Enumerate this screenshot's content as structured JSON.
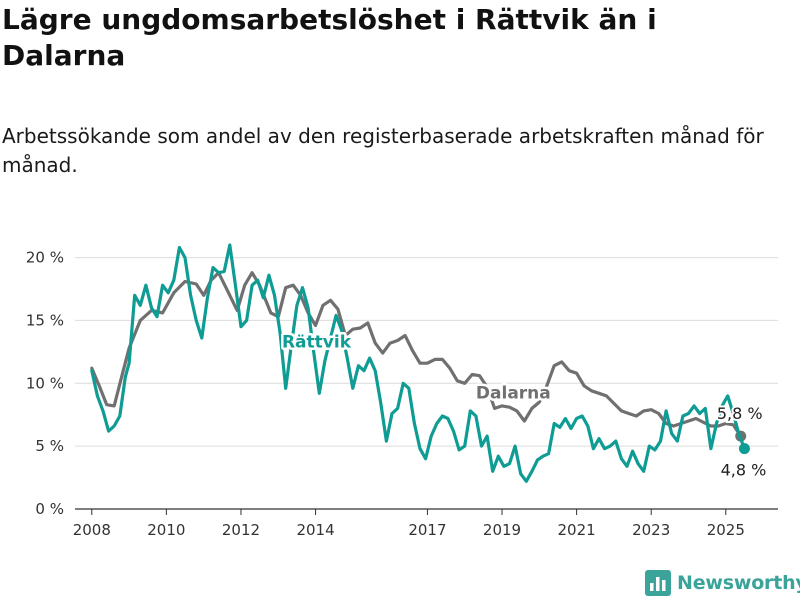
{
  "title": "Lägre ungdomsarbetslöshet i Rättvik än i Dalarna",
  "subtitle": "Arbetssökande som andel av den registerbaserade arbetskraften månad för månad.",
  "brand": {
    "name": "Newsworthy",
    "color": "#3aa39a"
  },
  "chart_data": {
    "type": "line",
    "ylim": [
      0,
      21
    ],
    "y_ticks": [
      {
        "value": 0,
        "label": "0 %"
      },
      {
        "value": 5,
        "label": "5 %"
      },
      {
        "value": 10,
        "label": "10 %"
      },
      {
        "value": 15,
        "label": "15 %"
      },
      {
        "value": 20,
        "label": "20 %"
      }
    ],
    "x_ticks": [
      {
        "value": 2008,
        "label": "2008"
      },
      {
        "value": 2010,
        "label": "2010"
      },
      {
        "value": 2012,
        "label": "2012"
      },
      {
        "value": 2014,
        "label": "2014"
      },
      {
        "value": 2017,
        "label": "2017"
      },
      {
        "value": 2019,
        "label": "2019"
      },
      {
        "value": 2021,
        "label": "2021"
      },
      {
        "value": 2023,
        "label": "2023"
      },
      {
        "value": 2025,
        "label": "2025"
      }
    ],
    "grid": true,
    "series": [
      {
        "name": "Dalarna",
        "color": "#707070",
        "end_label": "5,8 %",
        "points": [
          [
            2008.0,
            11.2
          ],
          [
            2008.2,
            9.8
          ],
          [
            2008.4,
            8.3
          ],
          [
            2008.6,
            8.2
          ],
          [
            2008.8,
            10.5
          ],
          [
            2009.0,
            12.8
          ],
          [
            2009.3,
            15.0
          ],
          [
            2009.6,
            15.8
          ],
          [
            2009.9,
            15.6
          ],
          [
            2010.2,
            17.2
          ],
          [
            2010.5,
            18.1
          ],
          [
            2010.8,
            17.9
          ],
          [
            2011.0,
            17.0
          ],
          [
            2011.2,
            18.2
          ],
          [
            2011.4,
            18.8
          ],
          [
            2011.6,
            17.6
          ],
          [
            2011.9,
            15.8
          ],
          [
            2012.1,
            17.8
          ],
          [
            2012.3,
            18.8
          ],
          [
            2012.5,
            17.8
          ],
          [
            2012.8,
            15.6
          ],
          [
            2013.0,
            15.3
          ],
          [
            2013.2,
            17.6
          ],
          [
            2013.4,
            17.8
          ],
          [
            2013.6,
            17.0
          ],
          [
            2013.8,
            15.6
          ],
          [
            2014.0,
            14.6
          ],
          [
            2014.2,
            16.2
          ],
          [
            2014.4,
            16.6
          ],
          [
            2014.6,
            15.9
          ],
          [
            2014.8,
            13.8
          ],
          [
            2015.0,
            14.3
          ],
          [
            2015.2,
            14.4
          ],
          [
            2015.4,
            14.8
          ],
          [
            2015.6,
            13.2
          ],
          [
            2015.8,
            12.4
          ],
          [
            2016.0,
            13.2
          ],
          [
            2016.2,
            13.4
          ],
          [
            2016.4,
            13.8
          ],
          [
            2016.6,
            12.6
          ],
          [
            2016.8,
            11.6
          ],
          [
            2017.0,
            11.6
          ],
          [
            2017.2,
            11.9
          ],
          [
            2017.4,
            11.9
          ],
          [
            2017.6,
            11.2
          ],
          [
            2017.8,
            10.2
          ],
          [
            2018.0,
            10.0
          ],
          [
            2018.2,
            10.7
          ],
          [
            2018.4,
            10.6
          ],
          [
            2018.6,
            9.7
          ],
          [
            2018.8,
            8.0
          ],
          [
            2019.0,
            8.2
          ],
          [
            2019.2,
            8.1
          ],
          [
            2019.4,
            7.8
          ],
          [
            2019.6,
            7.0
          ],
          [
            2019.8,
            8.0
          ],
          [
            2020.0,
            8.5
          ],
          [
            2020.2,
            9.8
          ],
          [
            2020.4,
            11.4
          ],
          [
            2020.6,
            11.7
          ],
          [
            2020.8,
            11.0
          ],
          [
            2021.0,
            10.8
          ],
          [
            2021.2,
            9.8
          ],
          [
            2021.4,
            9.4
          ],
          [
            2021.6,
            9.2
          ],
          [
            2021.8,
            9.0
          ],
          [
            2022.0,
            8.4
          ],
          [
            2022.2,
            7.8
          ],
          [
            2022.4,
            7.6
          ],
          [
            2022.6,
            7.4
          ],
          [
            2022.8,
            7.8
          ],
          [
            2023.0,
            7.9
          ],
          [
            2023.2,
            7.6
          ],
          [
            2023.4,
            6.8
          ],
          [
            2023.6,
            6.6
          ],
          [
            2023.8,
            6.8
          ],
          [
            2024.0,
            7.0
          ],
          [
            2024.2,
            7.2
          ],
          [
            2024.4,
            6.9
          ],
          [
            2024.6,
            6.6
          ],
          [
            2024.8,
            6.6
          ],
          [
            2025.0,
            6.8
          ],
          [
            2025.2,
            6.7
          ],
          [
            2025.4,
            5.8
          ]
        ]
      },
      {
        "name": "Rättvik",
        "color": "#0e9c94",
        "end_label": "4,8 %",
        "points": [
          [
            2008.0,
            11.0
          ],
          [
            2008.15,
            9.0
          ],
          [
            2008.3,
            7.8
          ],
          [
            2008.45,
            6.2
          ],
          [
            2008.6,
            6.6
          ],
          [
            2008.75,
            7.4
          ],
          [
            2008.9,
            10.5
          ],
          [
            2009.0,
            11.6
          ],
          [
            2009.15,
            17.0
          ],
          [
            2009.3,
            16.2
          ],
          [
            2009.45,
            17.8
          ],
          [
            2009.6,
            16.0
          ],
          [
            2009.75,
            15.3
          ],
          [
            2009.9,
            17.8
          ],
          [
            2010.05,
            17.2
          ],
          [
            2010.2,
            18.2
          ],
          [
            2010.35,
            20.8
          ],
          [
            2010.5,
            20.0
          ],
          [
            2010.65,
            17.0
          ],
          [
            2010.8,
            15.0
          ],
          [
            2010.95,
            13.6
          ],
          [
            2011.1,
            16.8
          ],
          [
            2011.25,
            19.2
          ],
          [
            2011.4,
            18.8
          ],
          [
            2011.55,
            18.9
          ],
          [
            2011.7,
            21.0
          ],
          [
            2011.85,
            17.8
          ],
          [
            2012.0,
            14.5
          ],
          [
            2012.15,
            15.0
          ],
          [
            2012.3,
            17.8
          ],
          [
            2012.45,
            18.2
          ],
          [
            2012.6,
            16.8
          ],
          [
            2012.75,
            18.6
          ],
          [
            2012.9,
            17.0
          ],
          [
            2013.05,
            14.0
          ],
          [
            2013.2,
            9.6
          ],
          [
            2013.35,
            13.0
          ],
          [
            2013.5,
            16.2
          ],
          [
            2013.65,
            17.6
          ],
          [
            2013.8,
            16.0
          ],
          [
            2013.95,
            12.5
          ],
          [
            2014.1,
            9.2
          ],
          [
            2014.25,
            11.8
          ],
          [
            2014.4,
            13.6
          ],
          [
            2014.55,
            15.4
          ],
          [
            2014.7,
            14.2
          ],
          [
            2014.85,
            12.0
          ],
          [
            2015.0,
            9.6
          ],
          [
            2015.15,
            11.4
          ],
          [
            2015.3,
            11.0
          ],
          [
            2015.45,
            12.0
          ],
          [
            2015.6,
            11.0
          ],
          [
            2015.75,
            8.4
          ],
          [
            2015.9,
            5.4
          ],
          [
            2016.05,
            7.6
          ],
          [
            2016.2,
            8.0
          ],
          [
            2016.35,
            10.0
          ],
          [
            2016.5,
            9.6
          ],
          [
            2016.65,
            6.8
          ],
          [
            2016.8,
            4.8
          ],
          [
            2016.95,
            4.0
          ],
          [
            2017.1,
            5.8
          ],
          [
            2017.25,
            6.8
          ],
          [
            2017.4,
            7.4
          ],
          [
            2017.55,
            7.2
          ],
          [
            2017.7,
            6.2
          ],
          [
            2017.85,
            4.7
          ],
          [
            2018.0,
            5.0
          ],
          [
            2018.15,
            7.8
          ],
          [
            2018.3,
            7.4
          ],
          [
            2018.45,
            5.0
          ],
          [
            2018.6,
            5.8
          ],
          [
            2018.75,
            3.0
          ],
          [
            2018.9,
            4.2
          ],
          [
            2019.05,
            3.4
          ],
          [
            2019.2,
            3.6
          ],
          [
            2019.35,
            5.0
          ],
          [
            2019.5,
            2.8
          ],
          [
            2019.65,
            2.2
          ],
          [
            2019.8,
            3.0
          ],
          [
            2019.95,
            3.9
          ],
          [
            2020.1,
            4.2
          ],
          [
            2020.25,
            4.4
          ],
          [
            2020.4,
            6.8
          ],
          [
            2020.55,
            6.5
          ],
          [
            2020.7,
            7.2
          ],
          [
            2020.85,
            6.4
          ],
          [
            2021.0,
            7.2
          ],
          [
            2021.15,
            7.4
          ],
          [
            2021.3,
            6.6
          ],
          [
            2021.45,
            4.8
          ],
          [
            2021.6,
            5.6
          ],
          [
            2021.75,
            4.8
          ],
          [
            2021.9,
            5.0
          ],
          [
            2022.05,
            5.4
          ],
          [
            2022.2,
            4.0
          ],
          [
            2022.35,
            3.4
          ],
          [
            2022.5,
            4.6
          ],
          [
            2022.65,
            3.6
          ],
          [
            2022.8,
            3.0
          ],
          [
            2022.95,
            5.0
          ],
          [
            2023.1,
            4.7
          ],
          [
            2023.25,
            5.4
          ],
          [
            2023.4,
            7.8
          ],
          [
            2023.55,
            6.0
          ],
          [
            2023.7,
            5.4
          ],
          [
            2023.85,
            7.4
          ],
          [
            2024.0,
            7.6
          ],
          [
            2024.15,
            8.2
          ],
          [
            2024.3,
            7.6
          ],
          [
            2024.45,
            8.0
          ],
          [
            2024.6,
            4.8
          ],
          [
            2024.75,
            6.8
          ],
          [
            2024.9,
            8.2
          ],
          [
            2025.05,
            9.0
          ],
          [
            2025.2,
            7.6
          ],
          [
            2025.35,
            6.0
          ],
          [
            2025.5,
            4.8
          ]
        ]
      }
    ]
  }
}
